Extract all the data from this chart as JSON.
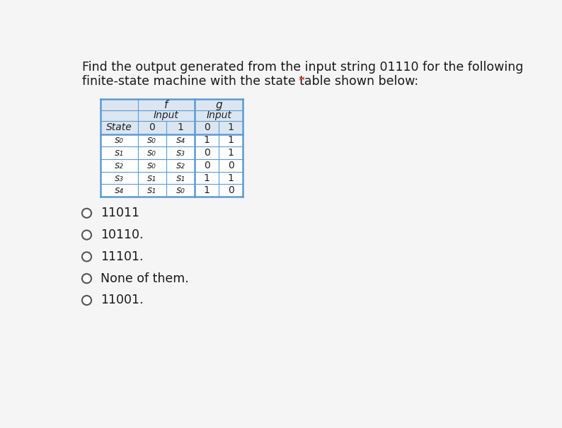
{
  "title_line1": "Find the output generated from the input string 01110 for the following",
  "title_line2_main": "finite-state machine with the state table shown below: ",
  "title_line2_star": "*",
  "title_fontsize": 12.5,
  "title_color": "#1a1a1a",
  "star_color": "#e74c3c",
  "table": {
    "data_rows": [
      [
        "s₀",
        "s₀",
        "s₄",
        "1",
        "1"
      ],
      [
        "s₁",
        "s₀",
        "s₃",
        "0",
        "1"
      ],
      [
        "s₂",
        "s₀",
        "s₂",
        "0",
        "0"
      ],
      [
        "s₃",
        "s₁",
        "s₁",
        "1",
        "1"
      ],
      [
        "s₄",
        "s₁",
        "s₀",
        "1",
        "0"
      ]
    ],
    "border_color": "#5b9bd5",
    "header_bg": "#dce6f1",
    "data_bg": "#ffffff"
  },
  "options": [
    "11011",
    "10110.",
    "11101.",
    "None of them.",
    "11001."
  ],
  "option_fontsize": 12.5,
  "background_color": "#f5f5f5"
}
